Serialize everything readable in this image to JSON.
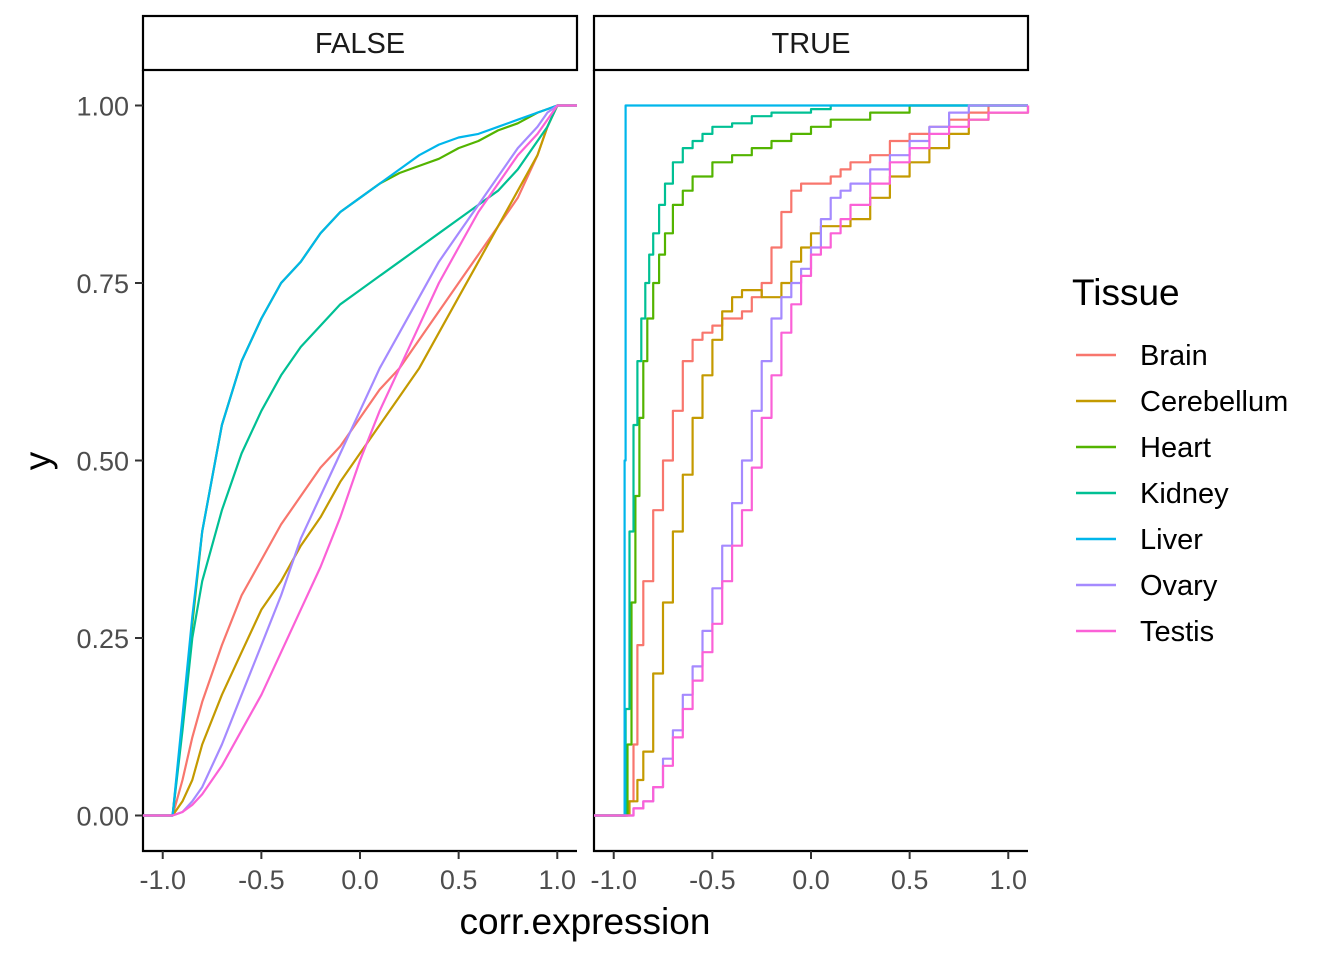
{
  "chart_data": {
    "type": "line",
    "xlabel": "corr.expression",
    "ylabel": "y",
    "xlim": [
      -1.1,
      1.1
    ],
    "ylim": [
      -0.05,
      1.05
    ],
    "x_ticks": [
      -1.0,
      -0.5,
      0.0,
      0.5,
      1.0
    ],
    "x_tick_labels": [
      "-1.0",
      "-0.5",
      "0.0",
      "0.5",
      "1.0"
    ],
    "y_ticks": [
      0.0,
      0.25,
      0.5,
      0.75,
      1.0
    ],
    "y_tick_labels": [
      "0.00",
      "0.25",
      "0.50",
      "0.75",
      "1.00"
    ],
    "grid": false,
    "legend": {
      "title": "Tissue",
      "placement": "right",
      "entries": [
        {
          "name": "Brain",
          "color": "#F8766D"
        },
        {
          "name": "Cerebellum",
          "color": "#C49A00"
        },
        {
          "name": "Heart",
          "color": "#53B400"
        },
        {
          "name": "Kidney",
          "color": "#00C094"
        },
        {
          "name": "Liver",
          "color": "#00B6EB"
        },
        {
          "name": "Ovary",
          "color": "#A58AFF"
        },
        {
          "name": "Testis",
          "color": "#FB61D7"
        }
      ]
    },
    "panels": [
      {
        "strip": "FALSE",
        "step": false,
        "series": [
          {
            "name": "Brain",
            "x": [
              -1.1,
              -0.95,
              -0.9,
              -0.85,
              -0.8,
              -0.7,
              -0.6,
              -0.5,
              -0.4,
              -0.3,
              -0.2,
              -0.1,
              0.0,
              0.1,
              0.2,
              0.3,
              0.4,
              0.5,
              0.6,
              0.7,
              0.8,
              0.9,
              0.95,
              1.0,
              1.1
            ],
            "y": [
              0,
              0,
              0.05,
              0.11,
              0.16,
              0.24,
              0.31,
              0.36,
              0.41,
              0.45,
              0.49,
              0.52,
              0.56,
              0.6,
              0.63,
              0.67,
              0.71,
              0.75,
              0.79,
              0.83,
              0.87,
              0.93,
              0.97,
              1.0,
              1.0
            ]
          },
          {
            "name": "Cerebellum",
            "x": [
              -1.1,
              -0.95,
              -0.9,
              -0.85,
              -0.8,
              -0.7,
              -0.6,
              -0.5,
              -0.4,
              -0.3,
              -0.2,
              -0.1,
              0.0,
              0.1,
              0.2,
              0.3,
              0.4,
              0.5,
              0.6,
              0.7,
              0.8,
              0.9,
              0.95,
              1.0,
              1.1
            ],
            "y": [
              0,
              0,
              0.02,
              0.05,
              0.1,
              0.17,
              0.23,
              0.29,
              0.33,
              0.38,
              0.42,
              0.47,
              0.51,
              0.55,
              0.59,
              0.63,
              0.68,
              0.73,
              0.78,
              0.83,
              0.88,
              0.93,
              0.97,
              1.0,
              1.0
            ]
          },
          {
            "name": "Heart",
            "x": [
              -1.1,
              -0.95,
              -0.9,
              -0.85,
              -0.8,
              -0.7,
              -0.6,
              -0.5,
              -0.4,
              -0.3,
              -0.2,
              -0.1,
              0.0,
              0.1,
              0.2,
              0.3,
              0.4,
              0.5,
              0.6,
              0.7,
              0.8,
              0.9,
              0.95,
              1.0,
              1.1
            ],
            "y": [
              0,
              0,
              0.13,
              0.27,
              0.4,
              0.55,
              0.64,
              0.7,
              0.75,
              0.78,
              0.82,
              0.85,
              0.87,
              0.89,
              0.905,
              0.915,
              0.925,
              0.94,
              0.95,
              0.965,
              0.975,
              0.99,
              0.995,
              1.0,
              1.0
            ]
          },
          {
            "name": "Kidney",
            "x": [
              -1.1,
              -0.95,
              -0.9,
              -0.85,
              -0.8,
              -0.7,
              -0.6,
              -0.5,
              -0.4,
              -0.3,
              -0.2,
              -0.1,
              0.0,
              0.1,
              0.2,
              0.3,
              0.4,
              0.5,
              0.6,
              0.7,
              0.8,
              0.9,
              0.95,
              1.0,
              1.1
            ],
            "y": [
              0,
              0,
              0.12,
              0.25,
              0.33,
              0.43,
              0.51,
              0.57,
              0.62,
              0.66,
              0.69,
              0.72,
              0.74,
              0.76,
              0.78,
              0.8,
              0.82,
              0.84,
              0.86,
              0.88,
              0.91,
              0.95,
              0.97,
              1.0,
              1.0
            ]
          },
          {
            "name": "Liver",
            "x": [
              -1.1,
              -0.95,
              -0.9,
              -0.85,
              -0.8,
              -0.7,
              -0.6,
              -0.5,
              -0.4,
              -0.3,
              -0.2,
              -0.1,
              0.0,
              0.1,
              0.2,
              0.3,
              0.4,
              0.5,
              0.6,
              0.7,
              0.8,
              0.9,
              0.95,
              1.0,
              1.1
            ],
            "y": [
              0,
              0,
              0.14,
              0.28,
              0.4,
              0.55,
              0.64,
              0.7,
              0.75,
              0.78,
              0.82,
              0.85,
              0.87,
              0.89,
              0.91,
              0.93,
              0.945,
              0.955,
              0.96,
              0.97,
              0.98,
              0.99,
              0.995,
              1.0,
              1.0
            ]
          },
          {
            "name": "Ovary",
            "x": [
              -1.1,
              -0.95,
              -0.9,
              -0.85,
              -0.8,
              -0.7,
              -0.6,
              -0.5,
              -0.4,
              -0.3,
              -0.2,
              -0.1,
              0.0,
              0.1,
              0.2,
              0.3,
              0.4,
              0.5,
              0.6,
              0.7,
              0.8,
              0.9,
              0.95,
              1.0,
              1.1
            ],
            "y": [
              0,
              0,
              0.005,
              0.02,
              0.04,
              0.1,
              0.17,
              0.24,
              0.31,
              0.39,
              0.45,
              0.51,
              0.57,
              0.63,
              0.68,
              0.73,
              0.78,
              0.82,
              0.86,
              0.9,
              0.94,
              0.97,
              0.99,
              1.0,
              1.0
            ]
          },
          {
            "name": "Testis",
            "x": [
              -1.1,
              -0.95,
              -0.9,
              -0.85,
              -0.8,
              -0.7,
              -0.6,
              -0.5,
              -0.4,
              -0.3,
              -0.2,
              -0.1,
              0.0,
              0.1,
              0.2,
              0.3,
              0.4,
              0.5,
              0.6,
              0.7,
              0.8,
              0.9,
              0.95,
              1.0,
              1.1
            ],
            "y": [
              0,
              0,
              0.005,
              0.015,
              0.03,
              0.07,
              0.12,
              0.17,
              0.23,
              0.29,
              0.35,
              0.42,
              0.5,
              0.57,
              0.63,
              0.69,
              0.75,
              0.8,
              0.85,
              0.89,
              0.93,
              0.96,
              0.98,
              1.0,
              1.0
            ]
          }
        ]
      },
      {
        "strip": "TRUE",
        "step": true,
        "series": [
          {
            "name": "Brain",
            "x": [
              -1.1,
              -0.95,
              -0.93,
              -0.9,
              -0.88,
              -0.85,
              -0.8,
              -0.75,
              -0.7,
              -0.65,
              -0.6,
              -0.55,
              -0.5,
              -0.45,
              -0.4,
              -0.35,
              -0.3,
              -0.25,
              -0.2,
              -0.15,
              -0.1,
              -0.05,
              0.0,
              0.05,
              0.1,
              0.15,
              0.2,
              0.3,
              0.4,
              0.5,
              0.6,
              0.7,
              0.8,
              0.9,
              1.1
            ],
            "y": [
              0,
              0,
              0.02,
              0.1,
              0.24,
              0.33,
              0.43,
              0.5,
              0.57,
              0.64,
              0.67,
              0.68,
              0.69,
              0.7,
              0.7,
              0.71,
              0.73,
              0.75,
              0.8,
              0.85,
              0.88,
              0.89,
              0.89,
              0.89,
              0.9,
              0.91,
              0.92,
              0.93,
              0.95,
              0.96,
              0.97,
              0.98,
              0.99,
              1.0,
              1.0
            ]
          },
          {
            "name": "Cerebellum",
            "x": [
              -1.1,
              -0.95,
              -0.92,
              -0.88,
              -0.85,
              -0.8,
              -0.75,
              -0.7,
              -0.65,
              -0.6,
              -0.55,
              -0.5,
              -0.45,
              -0.4,
              -0.35,
              -0.3,
              -0.25,
              -0.2,
              -0.15,
              -0.1,
              -0.05,
              0.0,
              0.05,
              0.1,
              0.2,
              0.3,
              0.4,
              0.5,
              0.6,
              0.7,
              0.8,
              0.9,
              1.1
            ],
            "y": [
              0,
              0,
              0.02,
              0.05,
              0.09,
              0.2,
              0.3,
              0.4,
              0.48,
              0.56,
              0.62,
              0.67,
              0.71,
              0.73,
              0.74,
              0.74,
              0.73,
              0.73,
              0.75,
              0.78,
              0.8,
              0.82,
              0.83,
              0.83,
              0.84,
              0.87,
              0.9,
              0.92,
              0.94,
              0.96,
              0.98,
              0.99,
              1.0
            ]
          },
          {
            "name": "Heart",
            "x": [
              -1.1,
              -0.95,
              -0.93,
              -0.91,
              -0.89,
              -0.87,
              -0.85,
              -0.83,
              -0.8,
              -0.77,
              -0.74,
              -0.7,
              -0.65,
              -0.6,
              -0.5,
              -0.4,
              -0.3,
              -0.2,
              -0.1,
              0.0,
              0.1,
              0.2,
              0.3,
              0.4,
              0.5,
              0.6,
              0.8,
              1.1
            ],
            "y": [
              0,
              0,
              0.1,
              0.3,
              0.45,
              0.56,
              0.64,
              0.7,
              0.75,
              0.79,
              0.82,
              0.86,
              0.88,
              0.9,
              0.92,
              0.93,
              0.94,
              0.95,
              0.96,
              0.97,
              0.98,
              0.98,
              0.99,
              0.99,
              1.0,
              1.0,
              1.0,
              1.0
            ]
          },
          {
            "name": "Kidney",
            "x": [
              -1.1,
              -0.95,
              -0.94,
              -0.92,
              -0.9,
              -0.88,
              -0.86,
              -0.84,
              -0.82,
              -0.8,
              -0.77,
              -0.74,
              -0.7,
              -0.65,
              -0.6,
              -0.55,
              -0.5,
              -0.4,
              -0.3,
              -0.2,
              -0.1,
              0.0,
              0.1,
              0.2,
              0.3,
              0.5,
              0.8,
              1.1
            ],
            "y": [
              0,
              0,
              0.15,
              0.4,
              0.55,
              0.64,
              0.7,
              0.75,
              0.79,
              0.82,
              0.86,
              0.89,
              0.92,
              0.94,
              0.95,
              0.96,
              0.97,
              0.975,
              0.985,
              0.99,
              0.99,
              0.995,
              1.0,
              1.0,
              1.0,
              1.0,
              1.0,
              1.0
            ]
          },
          {
            "name": "Liver",
            "x": [
              -1.1,
              -0.95,
              -0.945,
              -0.94,
              1.1
            ],
            "y": [
              0,
              0,
              0.5,
              1.0,
              1.0
            ]
          },
          {
            "name": "Ovary",
            "x": [
              -1.1,
              -0.95,
              -0.9,
              -0.85,
              -0.8,
              -0.75,
              -0.7,
              -0.65,
              -0.6,
              -0.55,
              -0.5,
              -0.45,
              -0.4,
              -0.35,
              -0.3,
              -0.25,
              -0.2,
              -0.15,
              -0.1,
              -0.05,
              0.0,
              0.05,
              0.1,
              0.15,
              0.2,
              0.3,
              0.4,
              0.5,
              0.6,
              0.7,
              0.8,
              1.1
            ],
            "y": [
              0,
              0,
              0.01,
              0.02,
              0.04,
              0.08,
              0.12,
              0.17,
              0.21,
              0.26,
              0.32,
              0.38,
              0.44,
              0.5,
              0.57,
              0.64,
              0.7,
              0.73,
              0.75,
              0.77,
              0.8,
              0.84,
              0.87,
              0.88,
              0.89,
              0.91,
              0.93,
              0.95,
              0.97,
              0.99,
              1.0,
              1.0
            ]
          },
          {
            "name": "Testis",
            "x": [
              -1.1,
              -0.95,
              -0.9,
              -0.85,
              -0.8,
              -0.75,
              -0.7,
              -0.65,
              -0.6,
              -0.55,
              -0.5,
              -0.45,
              -0.4,
              -0.35,
              -0.3,
              -0.25,
              -0.2,
              -0.15,
              -0.1,
              -0.05,
              0.0,
              0.05,
              0.1,
              0.15,
              0.2,
              0.3,
              0.4,
              0.5,
              0.6,
              0.7,
              0.8,
              0.9,
              1.1
            ],
            "y": [
              0,
              0,
              0.01,
              0.02,
              0.04,
              0.07,
              0.11,
              0.15,
              0.19,
              0.23,
              0.27,
              0.33,
              0.38,
              0.43,
              0.49,
              0.56,
              0.62,
              0.68,
              0.72,
              0.76,
              0.79,
              0.8,
              0.82,
              0.84,
              0.86,
              0.89,
              0.92,
              0.94,
              0.96,
              0.97,
              0.98,
              0.99,
              1.0
            ]
          }
        ]
      }
    ]
  }
}
